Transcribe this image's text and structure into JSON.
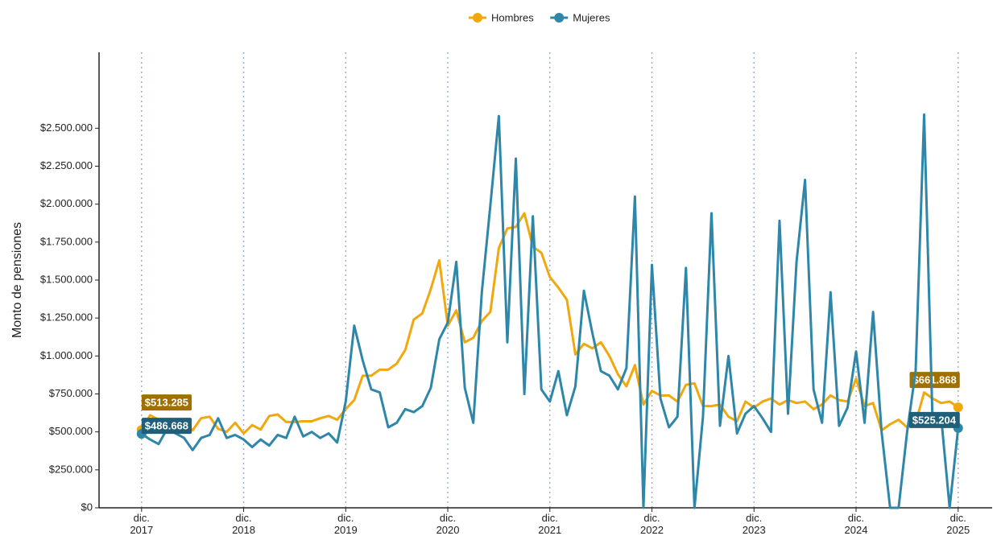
{
  "chart_data": {
    "type": "line",
    "y_label": "Monto de pensiones",
    "x": [
      "2017-12",
      "2018-01",
      "2018-02",
      "2018-03",
      "2018-04",
      "2018-05",
      "2018-06",
      "2018-07",
      "2018-08",
      "2018-09",
      "2018-10",
      "2018-11",
      "2018-12",
      "2019-01",
      "2019-02",
      "2019-03",
      "2019-04",
      "2019-05",
      "2019-06",
      "2019-07",
      "2019-08",
      "2019-09",
      "2019-10",
      "2019-11",
      "2019-12",
      "2020-01",
      "2020-02",
      "2020-03",
      "2020-04",
      "2020-05",
      "2020-06",
      "2020-07",
      "2020-08",
      "2020-09",
      "2020-10",
      "2020-11",
      "2020-12",
      "2021-01",
      "2021-02",
      "2021-03",
      "2021-04",
      "2021-05",
      "2021-06",
      "2021-07",
      "2021-08",
      "2021-09",
      "2021-10",
      "2021-11",
      "2021-12",
      "2022-01",
      "2022-02",
      "2022-03",
      "2022-04",
      "2022-05",
      "2022-06",
      "2022-07",
      "2022-08",
      "2022-09",
      "2022-10",
      "2022-11",
      "2022-12",
      "2023-01",
      "2023-02",
      "2023-03",
      "2023-04",
      "2023-05",
      "2023-06",
      "2023-07",
      "2023-08",
      "2023-09",
      "2023-10",
      "2023-11",
      "2023-12",
      "2024-01",
      "2024-02",
      "2024-03",
      "2024-04",
      "2024-05",
      "2024-06",
      "2024-07",
      "2024-08",
      "2024-09",
      "2024-10",
      "2024-11",
      "2024-12",
      "2025-01",
      "2025-02",
      "2025-03",
      "2025-04",
      "2025-05",
      "2025-06",
      "2025-07",
      "2025-08",
      "2025-09",
      "2025-10",
      "2025-11",
      "2025-12"
    ],
    "series": [
      {
        "name": "Hombres",
        "color": "#f0a80e",
        "values": [
          513285,
          610000,
          580000,
          555000,
          540000,
          570000,
          510000,
          590000,
          600000,
          520000,
          500000,
          560000,
          490000,
          545000,
          515000,
          605000,
          615000,
          565000,
          565000,
          570000,
          570000,
          590000,
          605000,
          580000,
          650000,
          710000,
          870000,
          870000,
          910000,
          910000,
          950000,
          1040000,
          1240000,
          1280000,
          1440000,
          1630000,
          1200000,
          1300000,
          1090000,
          1120000,
          1230000,
          1290000,
          1710000,
          1840000,
          1850000,
          1940000,
          1720000,
          1680000,
          1520000,
          1450000,
          1370000,
          1010000,
          1080000,
          1050000,
          1090000,
          1000000,
          880000,
          800000,
          940000,
          680000,
          770000,
          740000,
          740000,
          700000,
          810000,
          820000,
          670000,
          670000,
          680000,
          600000,
          570000,
          700000,
          660000,
          700000,
          720000,
          680000,
          710000,
          690000,
          700000,
          650000,
          680000,
          740000,
          710000,
          700000,
          850000,
          670000,
          690000,
          510000,
          550000,
          580000,
          530000,
          560000,
          760000,
          720000,
          690000,
          700000,
          661868
        ],
        "value_labels": [
          "$513.285",
          null,
          null,
          null,
          null,
          null,
          null,
          null,
          null,
          null,
          null,
          null,
          null,
          null,
          null,
          null,
          null,
          null,
          null,
          null,
          null,
          null,
          null,
          null,
          null,
          null,
          null,
          null,
          null,
          null,
          null,
          null,
          null,
          null,
          null,
          null,
          null,
          null,
          null,
          null,
          null,
          null,
          null,
          null,
          null,
          null,
          null,
          null,
          null,
          null,
          null,
          null,
          null,
          null,
          null,
          null,
          null,
          null,
          null,
          null,
          null,
          null,
          null,
          null,
          null,
          null,
          null,
          null,
          null,
          null,
          null,
          null,
          null,
          null,
          null,
          null,
          null,
          null,
          null,
          null,
          null,
          null,
          null,
          null,
          null,
          null,
          null,
          null,
          null,
          null,
          null,
          null,
          null,
          null,
          null,
          null,
          "$661.868"
        ]
      },
      {
        "name": "Mujeres",
        "color": "#2e86a8",
        "values": [
          486668,
          450000,
          420000,
          520000,
          490000,
          460000,
          380000,
          460000,
          480000,
          590000,
          460000,
          480000,
          450000,
          400000,
          450000,
          410000,
          480000,
          460000,
          600000,
          470000,
          500000,
          460000,
          490000,
          430000,
          700000,
          1200000,
          970000,
          780000,
          760000,
          530000,
          560000,
          650000,
          630000,
          670000,
          790000,
          1110000,
          1220000,
          1620000,
          790000,
          560000,
          1420000,
          1990000,
          2580000,
          1090000,
          2300000,
          750000,
          1920000,
          780000,
          700000,
          900000,
          610000,
          800000,
          1430000,
          1150000,
          900000,
          870000,
          780000,
          920000,
          2050000,
          0,
          1600000,
          720000,
          530000,
          600000,
          1580000,
          0,
          600000,
          1940000,
          540000,
          1000000,
          490000,
          620000,
          670000,
          590000,
          500000,
          1890000,
          620000,
          1620000,
          2160000,
          780000,
          560000,
          1420000,
          540000,
          660000,
          1030000,
          560000,
          1290000,
          500000,
          0,
          0,
          500000,
          900000,
          2590000,
          550000,
          600000,
          0,
          525204
        ],
        "value_labels": [
          "$486.668",
          null,
          null,
          null,
          null,
          null,
          null,
          null,
          null,
          null,
          null,
          null,
          null,
          null,
          null,
          null,
          null,
          null,
          null,
          null,
          null,
          null,
          null,
          null,
          null,
          null,
          null,
          null,
          null,
          null,
          null,
          null,
          null,
          null,
          null,
          null,
          null,
          null,
          null,
          null,
          null,
          null,
          null,
          null,
          null,
          null,
          null,
          null,
          null,
          null,
          null,
          null,
          null,
          null,
          null,
          null,
          null,
          null,
          null,
          null,
          null,
          null,
          null,
          null,
          null,
          null,
          null,
          null,
          null,
          null,
          null,
          null,
          null,
          null,
          null,
          null,
          null,
          null,
          null,
          null,
          null,
          null,
          null,
          null,
          null,
          null,
          null,
          null,
          null,
          null,
          null,
          null,
          null,
          null,
          null,
          null,
          "$525.204"
        ]
      }
    ],
    "xlim": [
      "2017-07",
      "2026-04"
    ],
    "xticks": [
      {
        "value": "2017-12",
        "label": "dic.\n2017"
      },
      {
        "value": "2018-12",
        "label": "dic.\n2018"
      },
      {
        "value": "2019-12",
        "label": "dic.\n2019"
      },
      {
        "value": "2020-12",
        "label": "dic.\n2020"
      },
      {
        "value": "2021-12",
        "label": "dic.\n2021"
      },
      {
        "value": "2022-12",
        "label": "dic.\n2022"
      },
      {
        "value": "2023-12",
        "label": "dic.\n2023"
      },
      {
        "value": "2024-12",
        "label": "dic.\n2024"
      },
      {
        "value": "2025-12",
        "label": "dic.\n2025"
      }
    ],
    "ylim": [
      0,
      3000000
    ],
    "yticks": [
      {
        "value": 0,
        "label": "$0"
      },
      {
        "value": 250000,
        "label": "$250.000"
      },
      {
        "value": 500000,
        "label": "$500.000"
      },
      {
        "value": 750000,
        "label": "$750.000"
      },
      {
        "value": 1000000,
        "label": "$1.000.000"
      },
      {
        "value": 1250000,
        "label": "$1.250.000"
      },
      {
        "value": 1500000,
        "label": "$1.500.000"
      },
      {
        "value": 1750000,
        "label": "$1.750.000"
      },
      {
        "value": 2000000,
        "label": "$2.000.000"
      },
      {
        "value": 2250000,
        "label": "$2.250.000"
      },
      {
        "value": 2500000,
        "label": "$2.500.000"
      }
    ],
    "grid": "x",
    "legend": "top"
  }
}
